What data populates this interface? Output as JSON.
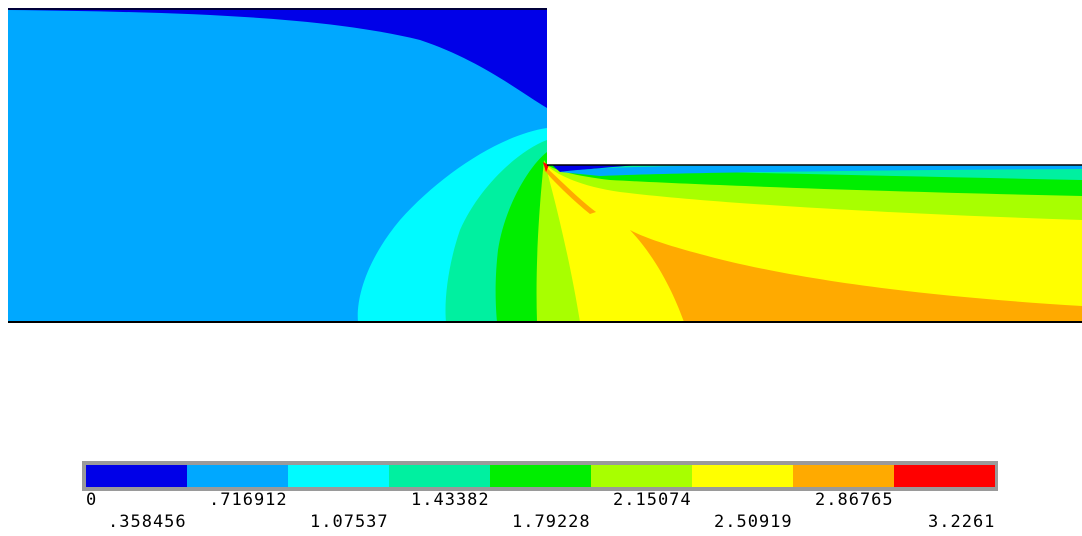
{
  "legend": {
    "colors": [
      "#0000e8",
      "#00a8ff",
      "#00fbff",
      "#00f0a0",
      "#00ee00",
      "#a8ff00",
      "#ffff00",
      "#ffaa00",
      "#ff0000"
    ],
    "border_color": "#9a9a9a",
    "labels_top": [
      "0",
      ".716912",
      "1.43382",
      "2.15074",
      "2.86765"
    ],
    "labels_bottom": [
      ".358456",
      "1.07537",
      "1.79228",
      "2.50919",
      "3.2261"
    ]
  }
}
